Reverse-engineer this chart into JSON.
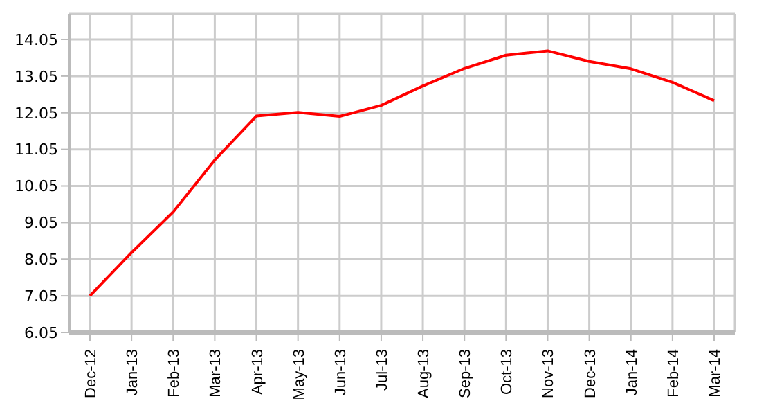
{
  "chart_data": {
    "type": "line",
    "categories": [
      "Dec-12",
      "Jan-13",
      "Feb-13",
      "Mar-13",
      "Apr-13",
      "May-13",
      "Jun-13",
      "Jul-13",
      "Aug-13",
      "Sep-13",
      "Oct-13",
      "Nov-13",
      "Dec-13",
      "Jan-14",
      "Feb-14",
      "Mar-14"
    ],
    "series": [
      {
        "color": "#ff0000",
        "values": [
          7.05,
          8.23,
          9.34,
          10.76,
          11.96,
          12.06,
          11.95,
          12.25,
          12.78,
          13.26,
          13.62,
          13.74,
          13.45,
          13.25,
          12.88,
          12.38
        ]
      }
    ],
    "ylim": [
      6.05,
      14.75
    ],
    "yticks": [
      6.05,
      7.05,
      8.05,
      9.05,
      10.05,
      11.05,
      12.05,
      13.05,
      14.05
    ],
    "grid": true,
    "marker": "none",
    "line_style": "solid",
    "legend": false
  }
}
